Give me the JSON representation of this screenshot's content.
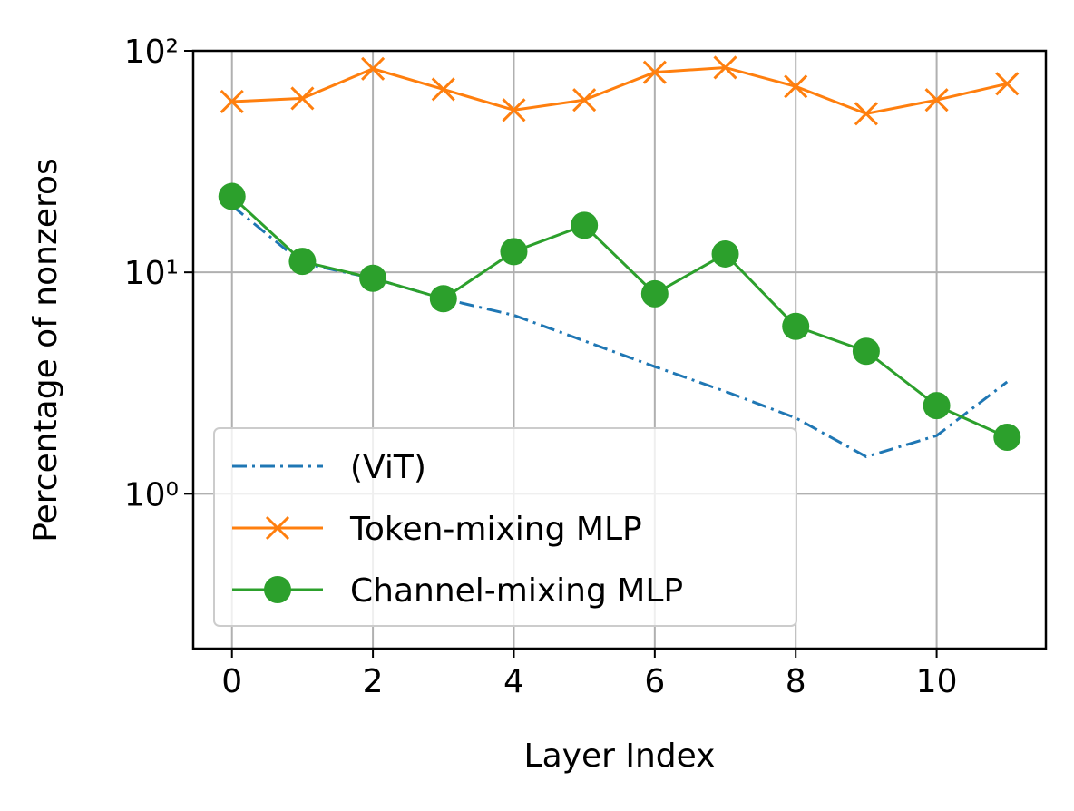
{
  "chart_data": {
    "type": "line",
    "x": [
      0,
      1,
      2,
      3,
      4,
      5,
      6,
      7,
      8,
      9,
      10,
      11
    ],
    "xlabel": "Layer Index",
    "ylabel": "Percentage of nonzeros",
    "xlim": [
      -0.55,
      11.55
    ],
    "xticks": [
      0,
      2,
      4,
      6,
      8,
      10
    ],
    "ylim": [
      0.2,
      100
    ],
    "yticks": [
      {
        "value": 1,
        "label": "10⁰"
      },
      {
        "value": 10,
        "label": "10¹"
      },
      {
        "value": 100,
        "label": "10²"
      }
    ],
    "yscale": "log",
    "grid": true,
    "legend": "lower left",
    "series": [
      {
        "name": "(ViT)",
        "color": "#1f77b4",
        "linestyle": "dashdot",
        "marker": "none",
        "values": [
          20,
          11,
          9.4,
          7.6,
          6.4,
          4.9,
          3.75,
          2.9,
          2.2,
          1.47,
          1.83,
          3.2
        ]
      },
      {
        "name": "Token-mixing MLP",
        "color": "#ff7f0e",
        "linestyle": "solid",
        "marker": "x",
        "values": [
          59,
          61,
          83,
          67,
          54,
          60,
          80,
          84,
          69,
          52,
          60,
          71
        ]
      },
      {
        "name": "Channel-mixing MLP",
        "color": "#2ca02c",
        "linestyle": "solid",
        "marker": "o",
        "values": [
          22,
          11.2,
          9.4,
          7.6,
          12.4,
          16.3,
          8.0,
          12.1,
          5.7,
          4.4,
          2.5,
          1.8
        ]
      }
    ]
  }
}
